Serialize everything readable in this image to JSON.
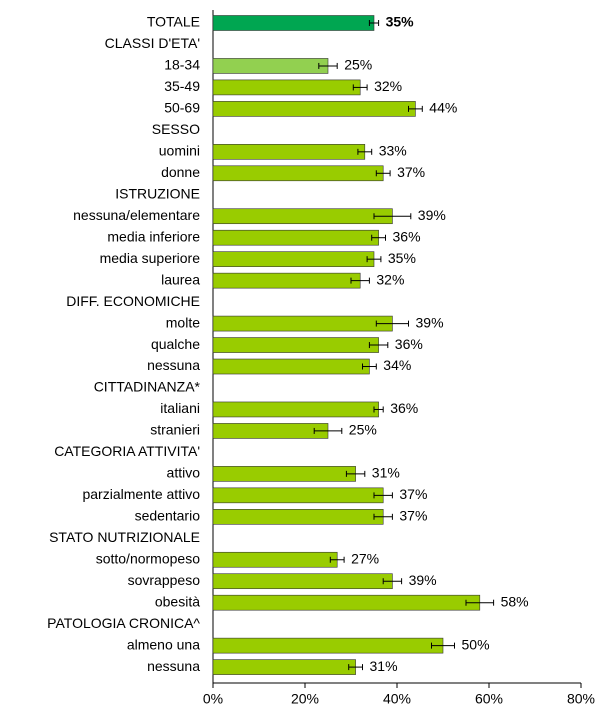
{
  "chart_data": {
    "type": "bar",
    "orientation": "horizontal",
    "categories": [
      "TOTALE",
      "CLASSI D'ETA'",
      "18-34",
      "35-49",
      "50-69",
      "SESSO",
      "uomini",
      "donne",
      "ISTRUZIONE",
      "nessuna/elementare",
      "media inferiore",
      "media superiore",
      "laurea",
      "DIFF. ECONOMICHE",
      "molte",
      "qualche",
      "nessuna",
      "CITTADINANZA*",
      "italiani",
      "stranieri",
      "CATEGORIA ATTIVITA'",
      "attivo",
      "parzialmente attivo",
      "sedentario",
      "STATO NUTRIZIONALE",
      "sotto/normopeso",
      "sovrappeso",
      "obesità",
      "PATOLOGIA CRONICA^",
      "almeno una",
      "nessuna"
    ],
    "values": [
      35,
      null,
      25,
      32,
      44,
      null,
      33,
      37,
      null,
      39,
      36,
      35,
      32,
      null,
      39,
      36,
      34,
      null,
      36,
      25,
      null,
      31,
      37,
      37,
      null,
      27,
      39,
      58,
      null,
      50,
      31
    ],
    "value_labels": [
      "35%",
      null,
      "25%",
      "32%",
      "44%",
      null,
      "33%",
      "37%",
      null,
      "39%",
      "36%",
      "35%",
      "32%",
      null,
      "39%",
      "36%",
      "34%",
      null,
      "36%",
      "25%",
      null,
      "31%",
      "37%",
      "37%",
      null,
      "27%",
      "39%",
      "58%",
      null,
      "50%",
      "31%"
    ],
    "errors": [
      1,
      null,
      2,
      1.5,
      1.5,
      null,
      1.5,
      1.5,
      null,
      4,
      1.5,
      1.5,
      2,
      null,
      3.5,
      2,
      1.5,
      null,
      1,
      3,
      null,
      2,
      2,
      2,
      null,
      1.5,
      2,
      3,
      null,
      2.5,
      1.5
    ],
    "colors": [
      "#00a651",
      null,
      "#92d050",
      "#99cc00",
      "#99cc00",
      null,
      "#99cc00",
      "#99cc00",
      null,
      "#99cc00",
      "#99cc00",
      "#99cc00",
      "#99cc00",
      null,
      "#99cc00",
      "#99cc00",
      "#99cc00",
      null,
      "#99cc00",
      "#99cc00",
      null,
      "#99cc00",
      "#99cc00",
      "#99cc00",
      null,
      "#99cc00",
      "#99cc00",
      "#99cc00",
      null,
      "#99cc00",
      "#99cc00"
    ],
    "xlim": [
      0,
      80
    ],
    "xticks": [
      {
        "value": 0,
        "label": "0%"
      },
      {
        "value": 20,
        "label": "20%"
      },
      {
        "value": 40,
        "label": "40%"
      },
      {
        "value": 60,
        "label": "60%"
      },
      {
        "value": 80,
        "label": "80%"
      }
    ]
  }
}
